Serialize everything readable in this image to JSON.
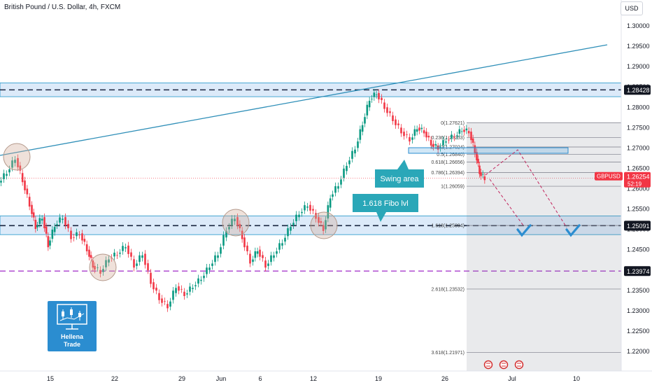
{
  "header": {
    "symbol_title": "British Pound / U.S. Dollar, 4h, FXCM",
    "currency_button": "USD"
  },
  "price_axis": {
    "ticks": [
      "1.30000",
      "1.29500",
      "1.29000",
      "1.28500",
      "1.28000",
      "1.27500",
      "1.27000",
      "1.26500",
      "1.26000",
      "1.25500",
      "1.25000",
      "1.24500",
      "1.24000",
      "1.23500",
      "1.23000",
      "1.22500",
      "1.22000"
    ],
    "tick_values": [
      1.3,
      1.295,
      1.29,
      1.285,
      1.28,
      1.275,
      1.27,
      1.265,
      1.26,
      1.255,
      1.25,
      1.245,
      1.24,
      1.235,
      1.23,
      1.225,
      1.22
    ],
    "tags": [
      {
        "label": "1.28428",
        "value": 1.28428,
        "color": "#131722",
        "text_color": "#ffffff"
      },
      {
        "label": "1.25091",
        "value": 1.25091,
        "color": "#131722",
        "text_color": "#ffffff"
      },
      {
        "label": "1.23974",
        "value": 1.23974,
        "color": "#131722",
        "text_color": "#ffffff"
      }
    ],
    "current": {
      "symbol": "GBPUSD",
      "price": "1.26254",
      "countdown": "52:19",
      "value": 1.26254,
      "color": "#f23645"
    }
  },
  "time_axis": {
    "labels": [
      "15",
      "22",
      "29",
      "Jun",
      "6",
      "12",
      "19",
      "26",
      "Jul",
      "10"
    ]
  },
  "chart_data": {
    "type": "candlestick",
    "title": "British Pound / U.S. Dollar, 4h, FXCM",
    "ylim": [
      1.217,
      1.302
    ],
    "horizontal_levels": [
      {
        "value": 1.28428,
        "style": "dashed",
        "zone": [
          1.2826,
          1.286
        ]
      },
      {
        "value": 1.25091,
        "style": "dashed",
        "zone": [
          1.2487,
          1.2533
        ]
      },
      {
        "value": 1.23974,
        "style": "dashed-purple"
      }
    ],
    "trendline": {
      "from": [
        1.2682,
        0
      ],
      "to": [
        1.2957,
        1
      ]
    },
    "fibonacci": [
      {
        "label": "0(1.27621)",
        "value": 1.27621
      },
      {
        "label": "0.236(1.27253)",
        "value": 1.27253
      },
      {
        "label": "0.382(1.27024)",
        "value": 1.27024
      },
      {
        "label": "0.5(1.26840)",
        "value": 1.2684
      },
      {
        "label": "0.618(1.26656)",
        "value": 1.26656
      },
      {
        "label": "0.786(1.26394)",
        "value": 1.26394
      },
      {
        "label": "1(1.26059)",
        "value": 1.26059
      },
      {
        "label": "1.618(1.25094)",
        "value": 1.25094
      },
      {
        "label": "2.618(1.23532)",
        "value": 1.23532
      },
      {
        "label": "3.618(1.21971)",
        "value": 1.21971
      }
    ],
    "annotations": [
      {
        "text": "Swing area"
      },
      {
        "text": "1.618 Fibo lvl"
      }
    ],
    "current_price": 1.26254
  },
  "logo": {
    "line1": "Hellena",
    "line2": "Trade"
  }
}
